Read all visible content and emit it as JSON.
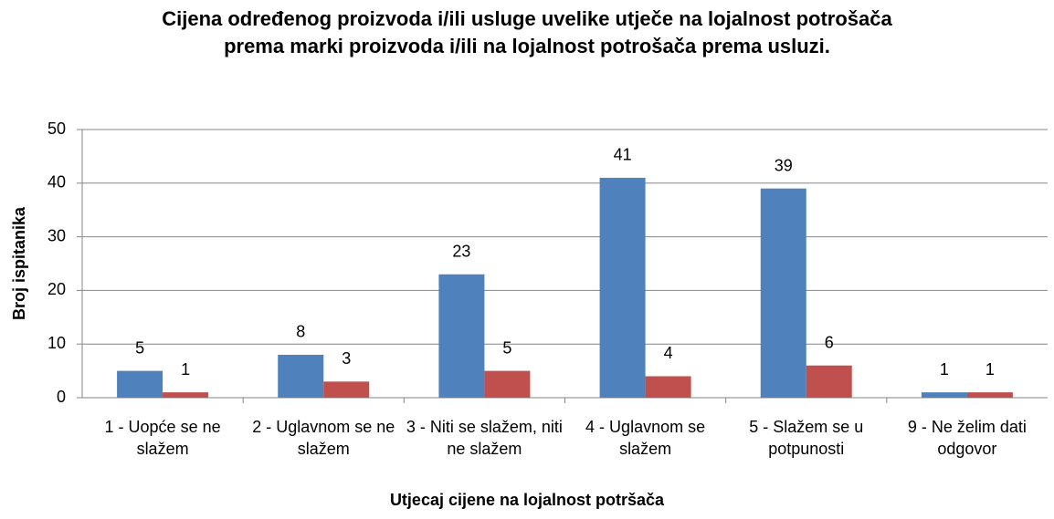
{
  "chart_data": {
    "type": "bar",
    "title": "Cijena određenog proizvoda i/ili usluge uvelike utječe na lojalnost potrošača prema marki proizvoda i/ili na lojalnost potrošača prema usluzi.",
    "xlabel": "Utjecaj cijene na lojalnost potršača",
    "ylabel": "Broj ispitanika",
    "categories": [
      "1 - Uopće se ne slažem",
      "2 - Uglavnom se ne slažem",
      "3 - Niti se slažem, niti ne slažem",
      "4 - Uglavnom se slažem",
      "5 - Slažem se u potpunosti",
      "9 - Ne želim dati odgovor"
    ],
    "series": [
      {
        "color": "#4f81bd",
        "values": [
          5,
          8,
          23,
          41,
          39,
          1
        ]
      },
      {
        "color": "#c0504d",
        "values": [
          1,
          3,
          5,
          4,
          6,
          1
        ]
      }
    ],
    "ylim": [
      0,
      50
    ],
    "yticks": [
      0,
      10,
      20,
      30,
      40,
      50
    ],
    "grid": true
  }
}
